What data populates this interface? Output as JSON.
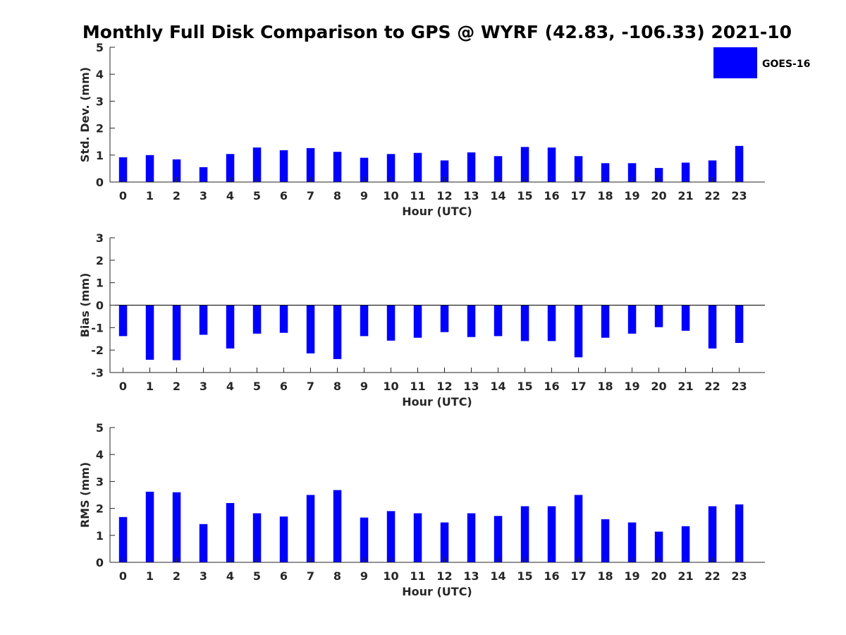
{
  "title": "Monthly Full Disk Comparison to GPS @ WYRF (42.83, -106.33) 2021-10",
  "legend": {
    "label": "GOES-16",
    "position": "top-right"
  },
  "colors": {
    "bar": "#0000ff",
    "axis": "#262626",
    "zero_line": "#000000"
  },
  "chart_data": [
    {
      "type": "bar",
      "xlabel": "Hour (UTC)",
      "ylabel": "Std. Dev. (mm)",
      "ylim": [
        0,
        5
      ],
      "yticks": [
        0,
        1,
        2,
        3,
        4,
        5
      ],
      "categories": [
        "0",
        "1",
        "2",
        "3",
        "4",
        "5",
        "6",
        "7",
        "8",
        "9",
        "10",
        "11",
        "12",
        "13",
        "14",
        "15",
        "16",
        "17",
        "18",
        "19",
        "20",
        "21",
        "22",
        "23"
      ],
      "series": [
        {
          "name": "GOES-16",
          "values": [
            0.92,
            1.0,
            0.84,
            0.55,
            1.04,
            1.28,
            1.18,
            1.26,
            1.12,
            0.9,
            1.04,
            1.08,
            0.8,
            1.1,
            0.96,
            1.3,
            1.28,
            0.96,
            0.7,
            0.7,
            0.52,
            0.72,
            0.8,
            1.34
          ]
        }
      ],
      "grid": false
    },
    {
      "type": "bar",
      "xlabel": "Hour (UTC)",
      "ylabel": "Bias (mm)",
      "ylim": [
        -3,
        3
      ],
      "yticks": [
        -3,
        -2,
        -1,
        0,
        1,
        2,
        3
      ],
      "categories": [
        "0",
        "1",
        "2",
        "3",
        "4",
        "5",
        "6",
        "7",
        "8",
        "9",
        "10",
        "11",
        "12",
        "13",
        "14",
        "15",
        "16",
        "17",
        "18",
        "19",
        "20",
        "21",
        "22",
        "23"
      ],
      "series": [
        {
          "name": "GOES-16",
          "values": [
            -1.38,
            -2.43,
            -2.45,
            -1.32,
            -1.93,
            -1.27,
            -1.23,
            -2.15,
            -2.4,
            -1.38,
            -1.58,
            -1.45,
            -1.2,
            -1.42,
            -1.38,
            -1.6,
            -1.6,
            -2.32,
            -1.45,
            -1.27,
            -0.98,
            -1.14,
            -1.93,
            -1.68
          ]
        }
      ],
      "grid": false
    },
    {
      "type": "bar",
      "xlabel": "Hour (UTC)",
      "ylabel": "RMS (mm)",
      "ylim": [
        0,
        5
      ],
      "yticks": [
        0,
        1,
        2,
        3,
        4,
        5
      ],
      "categories": [
        "0",
        "1",
        "2",
        "3",
        "4",
        "5",
        "6",
        "7",
        "8",
        "9",
        "10",
        "11",
        "12",
        "13",
        "14",
        "15",
        "16",
        "17",
        "18",
        "19",
        "20",
        "21",
        "22",
        "23"
      ],
      "series": [
        {
          "name": "GOES-16",
          "values": [
            1.68,
            2.62,
            2.6,
            1.42,
            2.2,
            1.82,
            1.7,
            2.5,
            2.68,
            1.66,
            1.9,
            1.82,
            1.48,
            1.82,
            1.72,
            2.08,
            2.08,
            2.5,
            1.6,
            1.48,
            1.14,
            1.34,
            2.08,
            2.15
          ]
        }
      ],
      "grid": false
    }
  ]
}
